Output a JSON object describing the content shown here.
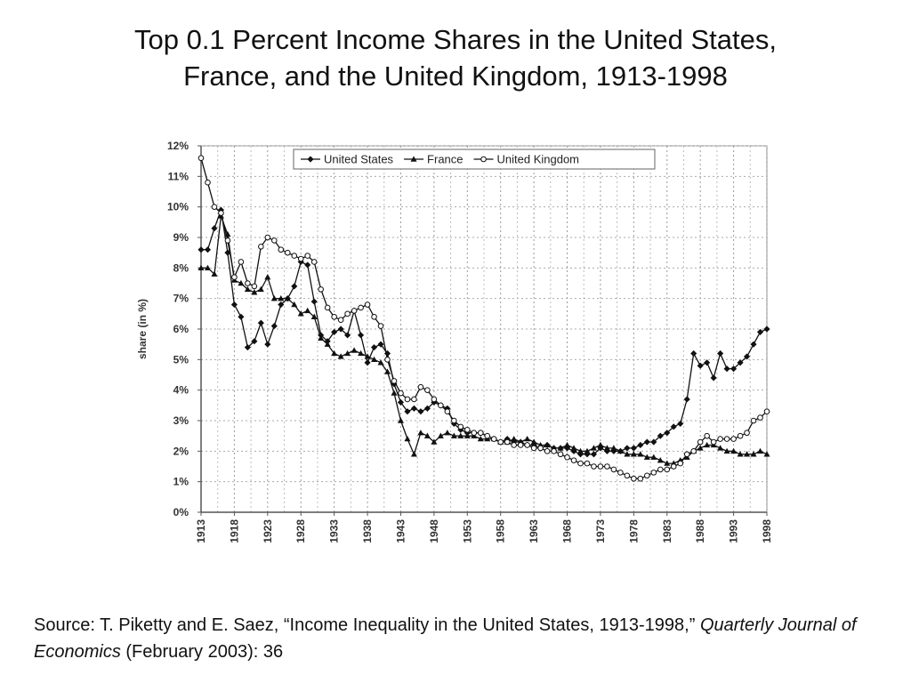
{
  "title": {
    "line1": "Top 0.1 Percent Income Shares in the United States,",
    "line2": "France, and the United Kingdom, 1913-1998"
  },
  "source": {
    "prefix": "Source: T. Piketty and E. Saez, “Income Inequality in the United States, 1913-1998,” ",
    "journal": "Quarterly Journal of Economics",
    "suffix": " (February 2003): 36"
  },
  "chart_data": {
    "type": "line",
    "ylabel": "share (in %)",
    "xlabel": "",
    "xlim": [
      1913,
      1998
    ],
    "ylim": [
      0,
      12
    ],
    "grid": true,
    "legend_position": "top",
    "x_ticks": [
      1913,
      1918,
      1923,
      1928,
      1933,
      1938,
      1943,
      1948,
      1953,
      1958,
      1963,
      1968,
      1973,
      1978,
      1983,
      1988,
      1993,
      1998
    ],
    "y_ticks": [
      {
        "value": 0,
        "label": "0%"
      },
      {
        "value": 1,
        "label": "1%"
      },
      {
        "value": 2,
        "label": "2%"
      },
      {
        "value": 3,
        "label": "3%"
      },
      {
        "value": 4,
        "label": "4%"
      },
      {
        "value": 5,
        "label": "5%"
      },
      {
        "value": 6,
        "label": "6%"
      },
      {
        "value": 7,
        "label": "7%"
      },
      {
        "value": 8,
        "label": "8%"
      },
      {
        "value": 9,
        "label": "9%"
      },
      {
        "value": 10,
        "label": "10%"
      },
      {
        "value": 11,
        "label": "11%"
      },
      {
        "value": 12,
        "label": "12%"
      }
    ],
    "series": [
      {
        "name": "United States",
        "marker": "filled-diamond",
        "color": "#111111",
        "points": [
          [
            1913,
            8.6
          ],
          [
            1914,
            8.6
          ],
          [
            1915,
            9.3
          ],
          [
            1916,
            9.9
          ],
          [
            1917,
            8.5
          ],
          [
            1918,
            6.8
          ],
          [
            1919,
            6.4
          ],
          [
            1920,
            5.4
          ],
          [
            1921,
            5.6
          ],
          [
            1922,
            6.2
          ],
          [
            1923,
            5.5
          ],
          [
            1924,
            6.1
          ],
          [
            1925,
            6.8
          ],
          [
            1926,
            7.0
          ],
          [
            1927,
            7.4
          ],
          [
            1928,
            8.2
          ],
          [
            1929,
            8.1
          ],
          [
            1930,
            6.9
          ],
          [
            1931,
            5.8
          ],
          [
            1932,
            5.6
          ],
          [
            1933,
            5.9
          ],
          [
            1934,
            6.0
          ],
          [
            1935,
            5.8
          ],
          [
            1936,
            6.6
          ],
          [
            1937,
            5.8
          ],
          [
            1938,
            4.9
          ],
          [
            1939,
            5.4
          ],
          [
            1940,
            5.5
          ],
          [
            1941,
            5.2
          ],
          [
            1942,
            4.2
          ],
          [
            1943,
            3.6
          ],
          [
            1944,
            3.3
          ],
          [
            1945,
            3.4
          ],
          [
            1946,
            3.3
          ],
          [
            1947,
            3.4
          ],
          [
            1948,
            3.6
          ],
          [
            1949,
            3.5
          ],
          [
            1950,
            3.4
          ],
          [
            1951,
            2.9
          ],
          [
            1952,
            2.7
          ],
          [
            1953,
            2.6
          ],
          [
            1954,
            2.6
          ],
          [
            1955,
            2.6
          ],
          [
            1956,
            2.5
          ],
          [
            1957,
            2.4
          ],
          [
            1958,
            2.3
          ],
          [
            1959,
            2.4
          ],
          [
            1960,
            2.3
          ],
          [
            1961,
            2.3
          ],
          [
            1962,
            2.2
          ],
          [
            1963,
            2.2
          ],
          [
            1964,
            2.1
          ],
          [
            1965,
            2.2
          ],
          [
            1966,
            2.1
          ],
          [
            1967,
            2.1
          ],
          [
            1968,
            2.1
          ],
          [
            1969,
            2.0
          ],
          [
            1970,
            1.9
          ],
          [
            1971,
            1.9
          ],
          [
            1972,
            1.9
          ],
          [
            1973,
            2.1
          ],
          [
            1974,
            2.0
          ],
          [
            1975,
            2.0
          ],
          [
            1976,
            2.0
          ],
          [
            1977,
            2.1
          ],
          [
            1978,
            2.1
          ],
          [
            1979,
            2.2
          ],
          [
            1980,
            2.3
          ],
          [
            1981,
            2.3
          ],
          [
            1982,
            2.5
          ],
          [
            1983,
            2.6
          ],
          [
            1984,
            2.8
          ],
          [
            1985,
            2.9
          ],
          [
            1986,
            3.7
          ],
          [
            1987,
            5.2
          ],
          [
            1988,
            4.8
          ],
          [
            1989,
            4.9
          ],
          [
            1990,
            4.4
          ],
          [
            1991,
            5.2
          ],
          [
            1992,
            4.7
          ],
          [
            1993,
            4.7
          ],
          [
            1994,
            4.9
          ],
          [
            1995,
            5.1
          ],
          [
            1996,
            5.5
          ],
          [
            1997,
            5.9
          ],
          [
            1998,
            6.0
          ]
        ]
      },
      {
        "name": "France",
        "marker": "triangle",
        "color": "#111111",
        "points": [
          [
            1913,
            8.0
          ],
          [
            1914,
            8.0
          ],
          [
            1915,
            7.8
          ],
          [
            1916,
            9.7
          ],
          [
            1917,
            9.1
          ],
          [
            1918,
            7.6
          ],
          [
            1919,
            7.5
          ],
          [
            1920,
            7.3
          ],
          [
            1921,
            7.2
          ],
          [
            1922,
            7.3
          ],
          [
            1923,
            7.7
          ],
          [
            1924,
            7.0
          ],
          [
            1925,
            7.0
          ],
          [
            1926,
            7.0
          ],
          [
            1927,
            6.8
          ],
          [
            1928,
            6.5
          ],
          [
            1929,
            6.6
          ],
          [
            1930,
            6.4
          ],
          [
            1931,
            5.7
          ],
          [
            1932,
            5.5
          ],
          [
            1933,
            5.2
          ],
          [
            1934,
            5.1
          ],
          [
            1935,
            5.2
          ],
          [
            1936,
            5.3
          ],
          [
            1937,
            5.2
          ],
          [
            1938,
            5.1
          ],
          [
            1939,
            5.0
          ],
          [
            1940,
            4.9
          ],
          [
            1941,
            4.6
          ],
          [
            1942,
            3.9
          ],
          [
            1943,
            3.0
          ],
          [
            1944,
            2.4
          ],
          [
            1945,
            1.9
          ],
          [
            1946,
            2.6
          ],
          [
            1947,
            2.5
          ],
          [
            1948,
            2.3
          ],
          [
            1949,
            2.5
          ],
          [
            1950,
            2.6
          ],
          [
            1951,
            2.5
          ],
          [
            1952,
            2.5
          ],
          [
            1953,
            2.5
          ],
          [
            1954,
            2.5
          ],
          [
            1955,
            2.4
          ],
          [
            1956,
            2.4
          ],
          [
            1957,
            2.4
          ],
          [
            1958,
            2.3
          ],
          [
            1959,
            2.3
          ],
          [
            1960,
            2.4
          ],
          [
            1961,
            2.3
          ],
          [
            1962,
            2.4
          ],
          [
            1963,
            2.3
          ],
          [
            1964,
            2.2
          ],
          [
            1965,
            2.2
          ],
          [
            1966,
            2.1
          ],
          [
            1967,
            2.1
          ],
          [
            1968,
            2.2
          ],
          [
            1969,
            2.1
          ],
          [
            1970,
            2.0
          ],
          [
            1971,
            2.0
          ],
          [
            1972,
            2.1
          ],
          [
            1973,
            2.2
          ],
          [
            1974,
            2.1
          ],
          [
            1975,
            2.1
          ],
          [
            1976,
            2.0
          ],
          [
            1977,
            1.9
          ],
          [
            1978,
            1.9
          ],
          [
            1979,
            1.9
          ],
          [
            1980,
            1.8
          ],
          [
            1981,
            1.8
          ],
          [
            1982,
            1.7
          ],
          [
            1983,
            1.6
          ],
          [
            1984,
            1.6
          ],
          [
            1985,
            1.7
          ],
          [
            1986,
            1.8
          ],
          [
            1987,
            2.0
          ],
          [
            1988,
            2.1
          ],
          [
            1989,
            2.2
          ],
          [
            1990,
            2.2
          ],
          [
            1991,
            2.1
          ],
          [
            1992,
            2.0
          ],
          [
            1993,
            2.0
          ],
          [
            1994,
            1.9
          ],
          [
            1995,
            1.9
          ],
          [
            1996,
            1.9
          ],
          [
            1997,
            2.0
          ],
          [
            1998,
            1.9
          ]
        ]
      },
      {
        "name": "United Kingdom",
        "marker": "open-circle",
        "color": "#111111",
        "points": [
          [
            1913,
            11.6
          ],
          [
            1914,
            10.8
          ],
          [
            1915,
            10.0
          ],
          [
            1916,
            9.8
          ],
          [
            1917,
            8.9
          ],
          [
            1918,
            7.7
          ],
          [
            1919,
            8.2
          ],
          [
            1920,
            7.5
          ],
          [
            1921,
            7.4
          ],
          [
            1922,
            8.7
          ],
          [
            1923,
            9.0
          ],
          [
            1924,
            8.9
          ],
          [
            1925,
            8.6
          ],
          [
            1926,
            8.5
          ],
          [
            1927,
            8.4
          ],
          [
            1928,
            8.3
          ],
          [
            1929,
            8.4
          ],
          [
            1930,
            8.2
          ],
          [
            1931,
            7.3
          ],
          [
            1932,
            6.7
          ],
          [
            1933,
            6.4
          ],
          [
            1934,
            6.3
          ],
          [
            1935,
            6.5
          ],
          [
            1936,
            6.6
          ],
          [
            1937,
            6.7
          ],
          [
            1938,
            6.8
          ],
          [
            1939,
            6.4
          ],
          [
            1940,
            6.1
          ],
          [
            1941,
            5.0
          ],
          [
            1942,
            4.3
          ],
          [
            1943,
            3.9
          ],
          [
            1944,
            3.7
          ],
          [
            1945,
            3.7
          ],
          [
            1946,
            4.1
          ],
          [
            1947,
            4.0
          ],
          [
            1948,
            3.7
          ],
          [
            1949,
            3.5
          ],
          [
            1950,
            3.3
          ],
          [
            1951,
            3.0
          ],
          [
            1952,
            2.8
          ],
          [
            1953,
            2.7
          ],
          [
            1954,
            2.6
          ],
          [
            1955,
            2.6
          ],
          [
            1956,
            2.5
          ],
          [
            1957,
            2.4
          ],
          [
            1958,
            2.3
          ],
          [
            1959,
            2.3
          ],
          [
            1960,
            2.2
          ],
          [
            1961,
            2.2
          ],
          [
            1962,
            2.2
          ],
          [
            1963,
            2.1
          ],
          [
            1964,
            2.1
          ],
          [
            1965,
            2.0
          ],
          [
            1966,
            2.0
          ],
          [
            1967,
            1.9
          ],
          [
            1968,
            1.8
          ],
          [
            1969,
            1.7
          ],
          [
            1970,
            1.6
          ],
          [
            1971,
            1.6
          ],
          [
            1972,
            1.5
          ],
          [
            1973,
            1.5
          ],
          [
            1974,
            1.5
          ],
          [
            1975,
            1.4
          ],
          [
            1976,
            1.3
          ],
          [
            1977,
            1.2
          ],
          [
            1978,
            1.1
          ],
          [
            1979,
            1.1
          ],
          [
            1980,
            1.2
          ],
          [
            1981,
            1.3
          ],
          [
            1982,
            1.4
          ],
          [
            1983,
            1.4
          ],
          [
            1984,
            1.5
          ],
          [
            1985,
            1.6
          ],
          [
            1986,
            1.9
          ],
          [
            1987,
            2.0
          ],
          [
            1988,
            2.3
          ],
          [
            1989,
            2.5
          ],
          [
            1990,
            2.3
          ],
          [
            1991,
            2.4
          ],
          [
            1992,
            2.4
          ],
          [
            1993,
            2.4
          ],
          [
            1994,
            2.5
          ],
          [
            1995,
            2.6
          ],
          [
            1996,
            3.0
          ],
          [
            1997,
            3.1
          ],
          [
            1998,
            3.3
          ]
        ]
      }
    ]
  }
}
